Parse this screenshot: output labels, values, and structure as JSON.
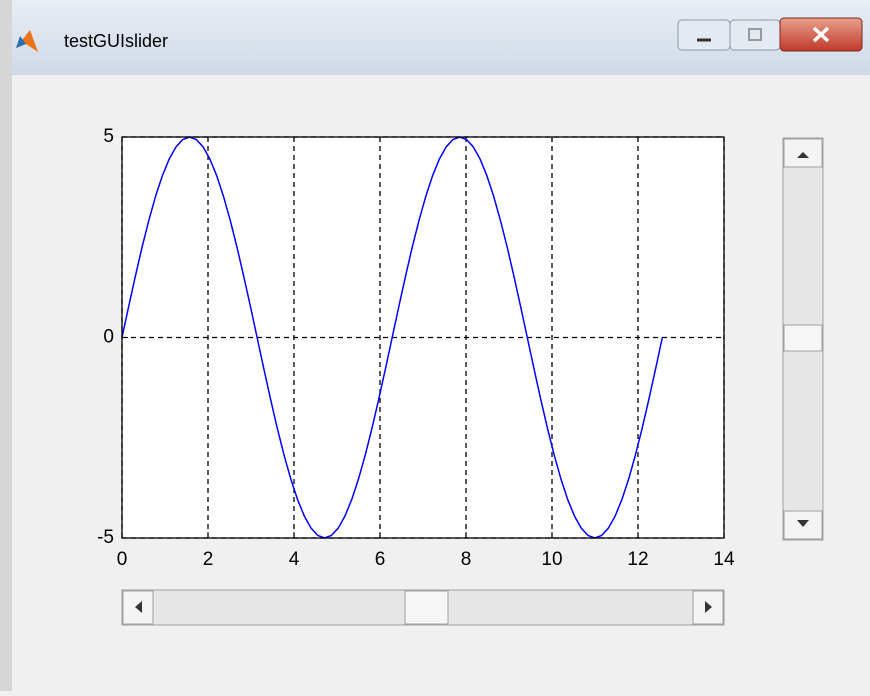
{
  "window": {
    "title": "testGUIslider"
  },
  "chart_data": {
    "type": "line",
    "color": "#0000ff",
    "grid": true,
    "grid_style": "dashed",
    "x": [
      0,
      0.157,
      0.314,
      0.471,
      0.628,
      0.785,
      0.942,
      1.1,
      1.257,
      1.414,
      1.571,
      1.728,
      1.885,
      2.042,
      2.199,
      2.356,
      2.513,
      2.67,
      2.827,
      2.985,
      3.142,
      3.299,
      3.456,
      3.613,
      3.77,
      3.927,
      4.084,
      4.241,
      4.398,
      4.555,
      4.712,
      4.869,
      5.027,
      5.184,
      5.341,
      5.498,
      5.655,
      5.812,
      5.969,
      6.126,
      6.283,
      6.44,
      6.597,
      6.754,
      6.912,
      7.069,
      7.226,
      7.383,
      7.54,
      7.697,
      7.854,
      8.011,
      8.168,
      8.325,
      8.482,
      8.639,
      8.796,
      8.954,
      9.111,
      9.268,
      9.425,
      9.582,
      9.739,
      9.896,
      10.053,
      10.21,
      10.367,
      10.524,
      10.681,
      10.838,
      10.996,
      11.153,
      11.31,
      11.467,
      11.624,
      11.781,
      11.938,
      12.095,
      12.252,
      12.409,
      12.566
    ],
    "values": [
      0,
      0.782,
      1.545,
      2.27,
      2.939,
      3.536,
      4.045,
      4.455,
      4.755,
      4.938,
      5,
      4.938,
      4.755,
      4.455,
      4.045,
      3.536,
      2.939,
      2.27,
      1.545,
      0.782,
      0,
      -0.782,
      -1.545,
      -2.27,
      -2.939,
      -3.536,
      -4.045,
      -4.455,
      -4.755,
      -4.938,
      -5,
      -4.938,
      -4.755,
      -4.455,
      -4.045,
      -3.536,
      -2.939,
      -2.27,
      -1.545,
      -0.782,
      0,
      0.782,
      1.545,
      2.27,
      2.939,
      3.536,
      4.045,
      4.455,
      4.755,
      4.938,
      5,
      4.938,
      4.755,
      4.455,
      4.045,
      3.536,
      2.939,
      2.27,
      1.545,
      0.782,
      0,
      -0.782,
      -1.545,
      -2.27,
      -2.939,
      -3.536,
      -4.045,
      -4.455,
      -4.755,
      -4.938,
      -5,
      -4.938,
      -4.755,
      -4.455,
      -4.045,
      -3.536,
      -2.939,
      -2.27,
      -1.545,
      -0.782,
      0
    ],
    "xlim": [
      0,
      14
    ],
    "xticks": [
      0,
      2,
      4,
      6,
      8,
      10,
      12,
      14
    ],
    "ylim": [
      -5,
      5
    ],
    "yticks": [
      -5,
      0,
      5
    ]
  }
}
